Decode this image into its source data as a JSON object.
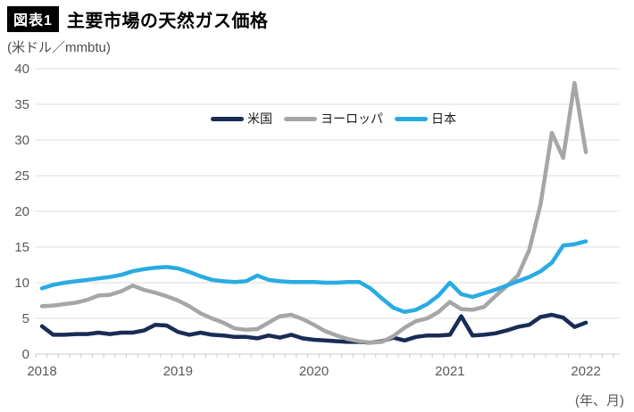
{
  "header": {
    "badge": "図表1",
    "title": "主要市場の天然ガス価格"
  },
  "chart": {
    "unit_label": "(米ドル／mmbtu)",
    "x_axis_note": "(年、月)"
  },
  "chart_data": {
    "type": "line",
    "title": "主要市場の天然ガス価格",
    "ylabel": "米ドル／mmbtu",
    "ylim": [
      0,
      40
    ],
    "y_ticks": [
      0,
      5,
      10,
      15,
      20,
      25,
      30,
      35,
      40
    ],
    "x_tick_labels": [
      "2018",
      "2019",
      "2020",
      "2021",
      "2022"
    ],
    "grid": true,
    "legend_position": "top-center",
    "x": [
      "2018-01",
      "2018-02",
      "2018-03",
      "2018-04",
      "2018-05",
      "2018-06",
      "2018-07",
      "2018-08",
      "2018-09",
      "2018-10",
      "2018-11",
      "2018-12",
      "2019-01",
      "2019-02",
      "2019-03",
      "2019-04",
      "2019-05",
      "2019-06",
      "2019-07",
      "2019-08",
      "2019-09",
      "2019-10",
      "2019-11",
      "2019-12",
      "2020-01",
      "2020-02",
      "2020-03",
      "2020-04",
      "2020-05",
      "2020-06",
      "2020-07",
      "2020-08",
      "2020-09",
      "2020-10",
      "2020-11",
      "2020-12",
      "2021-01",
      "2021-02",
      "2021-03",
      "2021-04",
      "2021-05",
      "2021-06",
      "2021-07",
      "2021-08",
      "2021-09",
      "2021-10",
      "2021-11",
      "2021-12",
      "2022-01"
    ],
    "series": [
      {
        "id": "us",
        "name": "米国",
        "color": "#192c55",
        "values": [
          3.9,
          2.7,
          2.7,
          2.8,
          2.8,
          3.0,
          2.8,
          3.0,
          3.0,
          3.3,
          4.1,
          4.0,
          3.1,
          2.7,
          3.0,
          2.7,
          2.6,
          2.4,
          2.4,
          2.2,
          2.6,
          2.3,
          2.7,
          2.2,
          2.0,
          1.9,
          1.8,
          1.7,
          1.7,
          1.6,
          1.8,
          2.3,
          1.9,
          2.4,
          2.6,
          2.6,
          2.7,
          5.3,
          2.6,
          2.7,
          2.9,
          3.3,
          3.8,
          4.1,
          5.2,
          5.5,
          5.1,
          3.8,
          4.4
        ]
      },
      {
        "id": "europe",
        "name": "ヨーロッパ",
        "color": "#a6a6a6",
        "values": [
          6.7,
          6.8,
          7.0,
          7.2,
          7.6,
          8.2,
          8.3,
          8.8,
          9.6,
          9.0,
          8.6,
          8.1,
          7.5,
          6.7,
          5.7,
          5.0,
          4.4,
          3.6,
          3.4,
          3.5,
          4.4,
          5.3,
          5.5,
          4.9,
          4.1,
          3.2,
          2.6,
          2.1,
          1.8,
          1.6,
          1.7,
          2.5,
          3.7,
          4.6,
          5.0,
          5.9,
          7.3,
          6.3,
          6.2,
          6.6,
          8.1,
          9.5,
          11.0,
          14.6,
          21.0,
          31.0,
          27.5,
          38.0,
          28.3
        ]
      },
      {
        "id": "japan",
        "name": "日本",
        "color": "#29abe2",
        "values": [
          9.2,
          9.7,
          10.0,
          10.2,
          10.4,
          10.6,
          10.8,
          11.1,
          11.6,
          11.9,
          12.1,
          12.2,
          12.0,
          11.5,
          10.9,
          10.4,
          10.2,
          10.1,
          10.2,
          11.0,
          10.4,
          10.2,
          10.1,
          10.1,
          10.1,
          10.0,
          10.0,
          10.1,
          10.1,
          9.2,
          7.8,
          6.5,
          5.9,
          6.2,
          7.0,
          8.2,
          10.0,
          8.4,
          8.0,
          8.5,
          9.0,
          9.6,
          10.2,
          10.8,
          11.6,
          12.8,
          15.2,
          15.4,
          15.8
        ]
      }
    ]
  }
}
